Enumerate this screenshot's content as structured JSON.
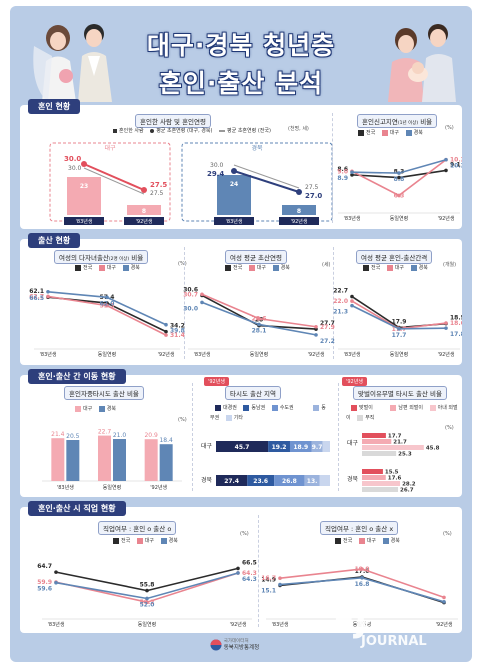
{
  "title": {
    "line1": "대구·경북 청년층",
    "line2": "혼인·출산 분석"
  },
  "colors": {
    "nation": "#2b2b2b",
    "daegu": "#e9848f",
    "gyeongbuk": "#5f86b5",
    "dark": "#1f2a5a",
    "navy": "#2e3f7c"
  },
  "sections": {
    "marriage": {
      "header": "혼인 현황",
      "p1": {
        "title": "혼인한 사람 및 혼인연령",
        "legend": [
          "혼인한 사람",
          "평균 초혼연령 (대구, 경북)",
          "평균 초혼연령 (전국)"
        ],
        "unit": "(천명, 세)",
        "daegu": {
          "label": "대구",
          "bars": [
            {
              "x": "'83년생",
              "v": "23"
            },
            {
              "x": "'92년생",
              "v": "8"
            }
          ],
          "age": [
            "30.0",
            "27.5"
          ],
          "nat": [
            "30.0",
            "27.5"
          ]
        },
        "gb": {
          "label": "경북",
          "bars": [
            {
              "x": "'83년생",
              "v": "24"
            },
            {
              "x": "'92년생",
              "v": "8"
            }
          ],
          "age": [
            "29.4",
            "27.0"
          ],
          "nat": [
            "30.0",
            "27.5"
          ]
        }
      },
      "p2": {
        "title": "혼인신고지연",
        "title_sub": "(1년 이상)",
        "title_end": "비율",
        "legend": [
          "전국",
          "대구",
          "경북"
        ],
        "unit": "(%)",
        "chart_data": {
          "type": "line",
          "categories": [
            "'83년생",
            "동일연령",
            "'92년생"
          ],
          "series": [
            {
              "name": "전국",
              "values": [
                8.6,
                8.3,
                9.1
              ]
            },
            {
              "name": "대구",
              "values": [
                9.0,
                6.3,
                10.3
              ]
            },
            {
              "name": "경북",
              "values": [
                8.9,
                8.8,
                10.3
              ]
            }
          ]
        },
        "labels": {
          "nation": [
            "8.6",
            "8.3",
            "9.1"
          ],
          "daegu": [
            "9.0",
            "6.3",
            "10.3"
          ],
          "gb": [
            "8.9",
            "8.8",
            "10.3"
          ]
        }
      }
    },
    "birth": {
      "header": "출산 현황",
      "p1": {
        "title": "여성의 다자녀출산",
        "title_sub": "(2명 이상)",
        "title_end": "비율",
        "legend": [
          "전국",
          "대구",
          "경북"
        ],
        "unit": "(%)",
        "chart_data": {
          "type": "line",
          "categories": [
            "'83년생",
            "동일연령",
            "'92년생"
          ],
          "series": [
            {
              "name": "전국",
              "values": [
                62.1,
                57.4,
                34.2
              ]
            },
            {
              "name": "대구",
              "values": [
                62.7,
                55.3,
                31.4
              ]
            },
            {
              "name": "경북",
              "values": [
                66.5,
                62.0,
                39.8
              ]
            }
          ]
        },
        "labels": {
          "nation": [
            "62.1",
            "57.4",
            "34.2"
          ],
          "daegu": [
            "62.7",
            "55.3",
            "31.4"
          ],
          "gb": [
            "66.5",
            "62.0",
            "39.8"
          ]
        }
      },
      "p2": {
        "title": "여성 평균 초산연령",
        "legend": [
          "전국",
          "대구",
          "경북"
        ],
        "unit": "(세)",
        "chart_data": {
          "type": "line",
          "categories": [
            "'83년생",
            "동일연령",
            "'92년생"
          ],
          "series": [
            {
              "name": "전국",
              "values": [
                30.6,
                28.0,
                27.7
              ]
            },
            {
              "name": "대구",
              "values": [
                30.7,
                28.6,
                27.9
              ]
            },
            {
              "name": "경북",
              "values": [
                30.0,
                28.1,
                27.2
              ]
            }
          ]
        },
        "labels": {
          "nation": [
            "30.6",
            "28",
            "27.7"
          ],
          "daegu": [
            "30.7",
            "28.6",
            "27.9"
          ],
          "gb": [
            "30.0",
            "28.1",
            "27.2"
          ]
        }
      },
      "p3": {
        "title": "여성 평균 혼인-출산간격",
        "legend": [
          "전국",
          "대구",
          "경북"
        ],
        "unit": "(개월)",
        "chart_data": {
          "type": "line",
          "categories": [
            "'83년생",
            "동일연령",
            "'92년생"
          ],
          "series": [
            {
              "name": "전국",
              "values": [
                22.7,
                17.9,
                18.5
              ]
            },
            {
              "name": "대구",
              "values": [
                22.0,
                17.7,
                18.6
              ]
            },
            {
              "name": "경북",
              "values": [
                21.3,
                17.7,
                17.8
              ]
            }
          ]
        },
        "labels": {
          "nation": [
            "22.7",
            "17.9",
            "18.5"
          ],
          "daegu": [
            "22.0",
            "17.7",
            "18.6"
          ],
          "gb": [
            "21.3",
            "17.7",
            "17.8"
          ]
        }
      }
    },
    "move": {
      "header": "혼인·출산 간 이동 현황",
      "p1": {
        "title": "혼인자중타시도 출산 비율",
        "legend": [
          "대구",
          "경북"
        ],
        "unit": "(%)",
        "chart_data": {
          "type": "bar",
          "categories": [
            "'83년생",
            "동일연령",
            "'92년생"
          ],
          "series": [
            {
              "name": "대구",
              "values": [
                21.4,
                22.7,
                20.9
              ]
            },
            {
              "name": "경북",
              "values": [
                20.5,
                21.0,
                18.4
              ]
            }
          ]
        },
        "labels": {
          "daegu": [
            "21.4",
            "22.7",
            "20.9"
          ],
          "gb": [
            "20.5",
            "21.0",
            "18.4"
          ]
        }
      },
      "p2": {
        "badge": "'92년생",
        "title": "타시도 출산 지역",
        "legend": [
          "대경권",
          "동남권",
          "수도권",
          "동부권",
          "기타"
        ],
        "rows": [
          {
            "name": "대구",
            "vals": [
              "45.7",
              "19.2",
              "18.9",
              "9.7",
              ""
            ]
          },
          {
            "name": "경북",
            "vals": [
              "27.4",
              "23.6",
              "26.8",
              "13.",
              ""
            ]
          }
        ]
      },
      "p3": {
        "badge": "'92년생",
        "title": "맞벌이유무별 타시도 출산 비율",
        "legend": [
          "맞벌이",
          "남편 외벌이",
          "아내 외벌이",
          "무직"
        ],
        "unit": "(%)",
        "rows": [
          {
            "name": "대구",
            "vals": [
              "17.7",
              "21.7",
              "45.8",
              "25.3"
            ]
          },
          {
            "name": "경북",
            "vals": [
              "15.5",
              "17.6",
              "28.2",
              "26.7"
            ]
          }
        ]
      }
    },
    "job": {
      "header": "혼인·출산 시 직업 현황",
      "p1": {
        "title": "직업여부 : 혼인 o 출산 o",
        "legend": [
          "전국",
          "대구",
          "경북"
        ],
        "unit": "(%)",
        "chart_data": {
          "type": "line",
          "categories": [
            "'83년생",
            "동일연령",
            "'92년생"
          ],
          "series": [
            {
              "name": "전국",
              "values": [
                64.7,
                55.8,
                66.5
              ]
            },
            {
              "name": "대구",
              "values": [
                59.9,
                50.2,
                64.3
              ]
            },
            {
              "name": "경북",
              "values": [
                59.6,
                52.0,
                64.3
              ]
            }
          ]
        },
        "labels": {
          "nation": [
            "64.7",
            "55.8",
            "66.5"
          ],
          "daegu": [
            "59.9",
            "50.2",
            "64.3"
          ],
          "gb": [
            "59.6",
            "52.0",
            "64.3"
          ]
        }
      },
      "p2": {
        "title": "직업여부 : 혼인 o 출산 x",
        "legend": [
          "전국",
          "대구",
          "경북"
        ],
        "unit": "(%)",
        "chart_data": {
          "type": "line",
          "categories": [
            "'83년생",
            "동일연령",
            "'92년생"
          ],
          "series": [
            {
              "name": "전국",
              "values": [
                14.9,
                17.0,
                10.6
              ]
            },
            {
              "name": "대구",
              "values": [
                16.7,
                19.0,
                11.9
              ]
            },
            {
              "name": "경북",
              "values": [
                15.1,
                16.8,
                10.8
              ]
            }
          ]
        },
        "labels": {
          "nation": [
            "14.9",
            "17.0",
            ""
          ],
          "daegu": [
            "16.7",
            "19.0",
            ""
          ],
          "gb": [
            "15.1",
            "16.8",
            ""
          ]
        }
      }
    }
  },
  "footer": {
    "org_small": "국가데이터처",
    "org": "동북지방통계청"
  },
  "watermark": {
    "kr": "파이낸셜뉴스",
    "en1": "FINANCIAL",
    "en2": "JOURNAL"
  }
}
